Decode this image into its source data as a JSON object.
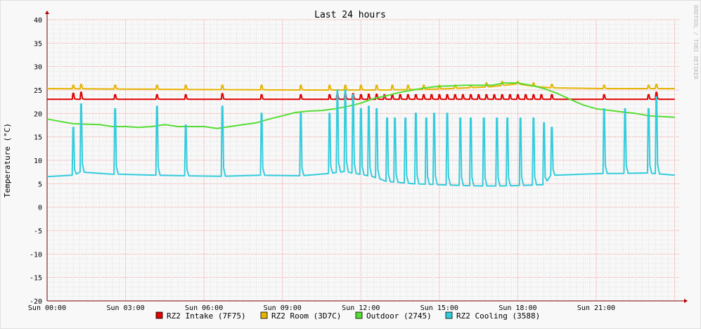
{
  "chart_data": {
    "type": "line",
    "title": "Last 24 hours",
    "ylabel": "Temperature (°C)",
    "watermark": "RRDTOOL / TOBI OETIKER",
    "ylim": [
      -20,
      40
    ],
    "y_ticks": [
      "-20",
      "-15",
      "-10",
      "-5",
      "0",
      "5",
      "10",
      "15",
      "20",
      "25",
      "30",
      "35",
      "40"
    ],
    "xlim_hours": [
      0,
      24.2
    ],
    "x_ticks": [
      {
        "h": 0,
        "label": "Sun 00:00"
      },
      {
        "h": 3,
        "label": "Sun 03:00"
      },
      {
        "h": 6,
        "label": "Sun 06:00"
      },
      {
        "h": 9,
        "label": "Sun 09:00"
      },
      {
        "h": 12,
        "label": "Sun 12:00"
      },
      {
        "h": 15,
        "label": "Sun 15:00"
      },
      {
        "h": 18,
        "label": "Sun 18:00"
      },
      {
        "h": 21,
        "label": "Sun 21:00"
      }
    ],
    "grid": true,
    "legend_position": "bottom",
    "series": [
      {
        "name": "RZ2 Intake (7F75)",
        "color": "#e00000",
        "base": [
          [
            0,
            23.0
          ],
          [
            24,
            23.0
          ]
        ],
        "spikes": [
          [
            1.0,
            24.3
          ],
          [
            1.3,
            24.5
          ],
          [
            2.6,
            24.0
          ],
          [
            4.2,
            24.0
          ],
          [
            5.3,
            24.0
          ],
          [
            6.7,
            24.2
          ],
          [
            8.2,
            24.0
          ],
          [
            9.7,
            24.0
          ],
          [
            10.8,
            24.0
          ],
          [
            11.1,
            24.2
          ],
          [
            11.4,
            24.3
          ],
          [
            11.7,
            24.2
          ],
          [
            12.0,
            24.0
          ],
          [
            12.3,
            24.1
          ],
          [
            12.6,
            24.1
          ],
          [
            12.9,
            24.0
          ],
          [
            13.2,
            24.0
          ],
          [
            13.5,
            24.0
          ],
          [
            13.8,
            24.0
          ],
          [
            14.1,
            24.0
          ],
          [
            14.4,
            24.0
          ],
          [
            14.7,
            24.0
          ],
          [
            15.0,
            24.0
          ],
          [
            15.3,
            24.0
          ],
          [
            15.6,
            24.0
          ],
          [
            15.9,
            24.0
          ],
          [
            16.2,
            24.0
          ],
          [
            16.5,
            24.0
          ],
          [
            16.8,
            24.0
          ],
          [
            17.1,
            24.0
          ],
          [
            17.4,
            24.0
          ],
          [
            17.7,
            24.0
          ],
          [
            18.0,
            24.0
          ],
          [
            18.3,
            24.0
          ],
          [
            18.6,
            24.0
          ],
          [
            18.9,
            24.0
          ],
          [
            19.3,
            24.0
          ],
          [
            21.3,
            24.0
          ],
          [
            23.0,
            24.0
          ],
          [
            23.3,
            24.5
          ]
        ]
      },
      {
        "name": "RZ2 Room (3D7C)",
        "color": "#e6b400",
        "base": [
          [
            0,
            25.3
          ],
          [
            9,
            25.0
          ],
          [
            13,
            25.0
          ],
          [
            15,
            25.2
          ],
          [
            17,
            25.7
          ],
          [
            18,
            26.3
          ],
          [
            19,
            25.5
          ],
          [
            20.5,
            25.3
          ],
          [
            24,
            25.3
          ]
        ],
        "spikes": [
          [
            1.0,
            26.0
          ],
          [
            1.3,
            26.2
          ],
          [
            2.6,
            26.0
          ],
          [
            4.2,
            26.0
          ],
          [
            5.3,
            26.0
          ],
          [
            6.7,
            26.0
          ],
          [
            8.2,
            26.0
          ],
          [
            9.7,
            26.0
          ],
          [
            10.8,
            26.0
          ],
          [
            11.4,
            26.0
          ],
          [
            12.0,
            26.0
          ],
          [
            12.6,
            26.0
          ],
          [
            13.2,
            26.0
          ],
          [
            13.8,
            26.0
          ],
          [
            14.4,
            26.0
          ],
          [
            15.0,
            26.0
          ],
          [
            15.6,
            26.0
          ],
          [
            16.2,
            26.0
          ],
          [
            16.8,
            26.5
          ],
          [
            17.4,
            26.8
          ],
          [
            18.0,
            26.8
          ],
          [
            18.6,
            26.5
          ],
          [
            19.3,
            26.2
          ],
          [
            21.3,
            26.0
          ],
          [
            23.0,
            26.0
          ],
          [
            23.3,
            26.2
          ]
        ]
      },
      {
        "name": "Outdoor (2745)",
        "color": "#55dd33",
        "points": [
          [
            0,
            18.8
          ],
          [
            0.5,
            18.3
          ],
          [
            1,
            17.8
          ],
          [
            2,
            17.6
          ],
          [
            2.5,
            17.2
          ],
          [
            3,
            17.2
          ],
          [
            3.5,
            17.0
          ],
          [
            4,
            17.2
          ],
          [
            4.5,
            17.6
          ],
          [
            5,
            17.2
          ],
          [
            6,
            17.2
          ],
          [
            6.5,
            16.8
          ],
          [
            7,
            17.2
          ],
          [
            7.5,
            17.6
          ],
          [
            8,
            18.0
          ],
          [
            8.5,
            18.8
          ],
          [
            9,
            19.5
          ],
          [
            9.5,
            20.2
          ],
          [
            10,
            20.5
          ],
          [
            10.5,
            20.6
          ],
          [
            11,
            21.0
          ],
          [
            11.5,
            21.5
          ],
          [
            12,
            22.2
          ],
          [
            12.5,
            23.2
          ],
          [
            13,
            23.8
          ],
          [
            13.5,
            24.5
          ],
          [
            14,
            25.0
          ],
          [
            14.5,
            25.5
          ],
          [
            15,
            25.8
          ],
          [
            16,
            26.0
          ],
          [
            17,
            26.0
          ],
          [
            17.5,
            26.5
          ],
          [
            18,
            26.5
          ],
          [
            18.5,
            26.0
          ],
          [
            19,
            25.3
          ],
          [
            19.5,
            24.3
          ],
          [
            20,
            23.0
          ],
          [
            20.5,
            21.8
          ],
          [
            21,
            21.0
          ],
          [
            22,
            20.3
          ],
          [
            22.5,
            20.0
          ],
          [
            23,
            19.5
          ],
          [
            24,
            19.2
          ]
        ]
      },
      {
        "name": "RZ2 Cooling (3588)",
        "color": "#33ccdd",
        "base": [
          [
            0,
            6.5
          ],
          [
            1,
            6.8
          ],
          [
            1.3,
            7.5
          ],
          [
            2,
            7.2
          ],
          [
            2.6,
            7.0
          ],
          [
            3.2,
            7.2
          ],
          [
            4.2,
            6.8
          ],
          [
            5.3,
            6.7
          ],
          [
            6.7,
            6.6
          ],
          [
            8.2,
            6.8
          ],
          [
            9.7,
            6.7
          ],
          [
            10.5,
            7.0
          ],
          [
            11.4,
            7.6
          ],
          [
            12.0,
            7.0
          ],
          [
            12.5,
            6.5
          ],
          [
            13,
            5.5
          ],
          [
            14,
            5.0
          ],
          [
            15,
            4.8
          ],
          [
            16,
            4.6
          ],
          [
            17,
            4.5
          ],
          [
            18,
            4.6
          ],
          [
            19,
            4.8
          ],
          [
            19.3,
            6.8
          ],
          [
            20,
            6.9
          ],
          [
            21,
            7.2
          ],
          [
            22,
            7.2
          ],
          [
            23,
            7.3
          ],
          [
            24,
            6.8
          ]
        ],
        "spikes": [
          [
            1.0,
            17.0
          ],
          [
            1.3,
            22.0
          ],
          [
            2.6,
            21.0
          ],
          [
            4.2,
            21.5
          ],
          [
            5.3,
            17.5
          ],
          [
            6.7,
            21.5
          ],
          [
            8.2,
            20.0
          ],
          [
            9.7,
            20.0
          ],
          [
            10.8,
            20.0
          ],
          [
            11.1,
            25.0
          ],
          [
            11.4,
            25.0
          ],
          [
            11.7,
            24.0
          ],
          [
            12.0,
            21.0
          ],
          [
            12.3,
            21.5
          ],
          [
            12.6,
            21.0
          ],
          [
            13.0,
            19.0
          ],
          [
            13.3,
            19.0
          ],
          [
            13.7,
            19.0
          ],
          [
            14.1,
            20.0
          ],
          [
            14.5,
            19.0
          ],
          [
            14.8,
            20.0
          ],
          [
            15.3,
            20.0
          ],
          [
            15.8,
            19.0
          ],
          [
            16.2,
            19.0
          ],
          [
            16.7,
            19.0
          ],
          [
            17.2,
            19.0
          ],
          [
            17.6,
            19.0
          ],
          [
            18.1,
            19.0
          ],
          [
            18.6,
            19.0
          ],
          [
            19.0,
            18.0
          ],
          [
            19.3,
            17.0
          ],
          [
            21.3,
            21.0
          ],
          [
            22.1,
            21.0
          ],
          [
            23.0,
            21.0
          ],
          [
            23.3,
            23.5
          ]
        ]
      }
    ]
  }
}
